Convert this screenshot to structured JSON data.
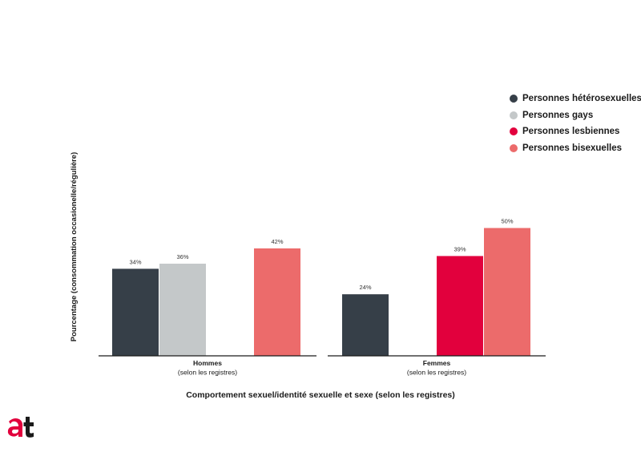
{
  "colors": {
    "heterosexual": "#363f48",
    "gay": "#c4c8c9",
    "lesbian": "#e2003d",
    "bisexual": "#ec6b6b",
    "axis": "#1a1a1a",
    "logo_red": "#e2003d",
    "logo_dark": "#1a1a1a"
  },
  "logo_icon": "at-logo-icon",
  "chart_data": {
    "type": "bar",
    "title": "",
    "xlabel": "Comportement sexuel/identité sexuelle et sexe (selon les registres)",
    "ylabel": "Pourcentage (consommation occasionelle/régulière)",
    "ylim": [
      0,
      100
    ],
    "grid": false,
    "legend_position": "top-right",
    "series_names": [
      "Personnes hétérosexuelles",
      "Personnes gays",
      "Personnes lesbiennes",
      "Personnes bisexuelles"
    ],
    "groups": [
      {
        "label_line1": "Hommes",
        "label_line2": "(selon les registres)",
        "bars": [
          {
            "series": 0,
            "value": 34,
            "label": "34%"
          },
          {
            "series": 1,
            "value": 36,
            "label": "36%"
          },
          {
            "series": 3,
            "value": 42,
            "label": "42%"
          }
        ]
      },
      {
        "label_line1": "Femmes",
        "label_line2": "(selon les registres)",
        "bars": [
          {
            "series": 0,
            "value": 24,
            "label": "24%"
          },
          {
            "series": 2,
            "value": 39,
            "label": "39%"
          },
          {
            "series": 3,
            "value": 50,
            "label": "50%"
          }
        ]
      }
    ]
  }
}
